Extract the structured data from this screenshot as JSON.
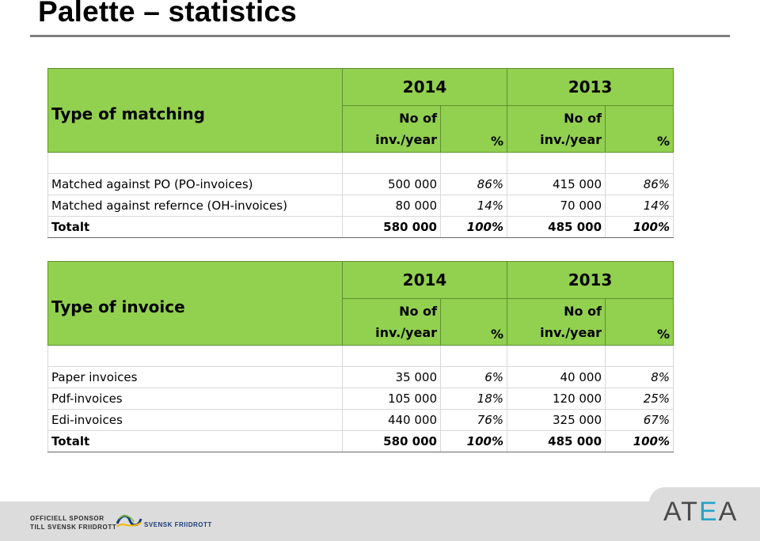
{
  "slide": {
    "title": "Palette – statistics"
  },
  "matching_table": {
    "type_label": "Type of matching",
    "years": [
      "2014",
      "2013"
    ],
    "col_headers": {
      "no_of_1": "No of",
      "no_of_2": "inv./year",
      "pct": "%"
    },
    "rows": [
      {
        "label": "Matched against PO (PO-invoices)",
        "v2014": "500 000",
        "p2014": "86%",
        "v2013": "415 000",
        "p2013": "86%"
      },
      {
        "label": "Matched against refernce (OH-invoices)",
        "v2014": "80 000",
        "p2014": "14%",
        "v2013": "70 000",
        "p2013": "14%"
      },
      {
        "label": "Totalt",
        "v2014": "580 000",
        "p2014": "100%",
        "v2013": "485 000",
        "p2013": "100%"
      }
    ]
  },
  "invoice_table": {
    "type_label": "Type of invoice",
    "years": [
      "2014",
      "2013"
    ],
    "col_headers": {
      "no_of_1": "No of",
      "no_of_2": "inv./year",
      "pct": "%"
    },
    "rows": [
      {
        "label": "Paper invoices",
        "v2014": "35 000",
        "p2014": "6%",
        "v2013": "40 000",
        "p2013": "8%"
      },
      {
        "label": "Pdf-invoices",
        "v2014": "105 000",
        "p2014": "18%",
        "v2013": "120 000",
        "p2013": "25%"
      },
      {
        "label": "Edi-invoices",
        "v2014": "440 000",
        "p2014": "76%",
        "v2013": "325 000",
        "p2013": "67%"
      },
      {
        "label": "Totalt",
        "v2014": "580 000",
        "p2014": "100%",
        "v2013": "485 000",
        "p2013": "100%"
      }
    ]
  },
  "footer": {
    "sponsor_line1": "OFFICIELL SPONSOR",
    "sponsor_line2": "TILL SVENSK FRIIDROTT",
    "sponsor_name": "SVENSK FRIIDROTT",
    "brand_part1": "AT",
    "brand_part2": "E",
    "brand_part3": "A"
  },
  "colors": {
    "header_green": "#92d050",
    "rule_gray": "#7f7f7f",
    "brand_accent": "#25a3c9",
    "footer_gray": "#dcdcdc"
  }
}
